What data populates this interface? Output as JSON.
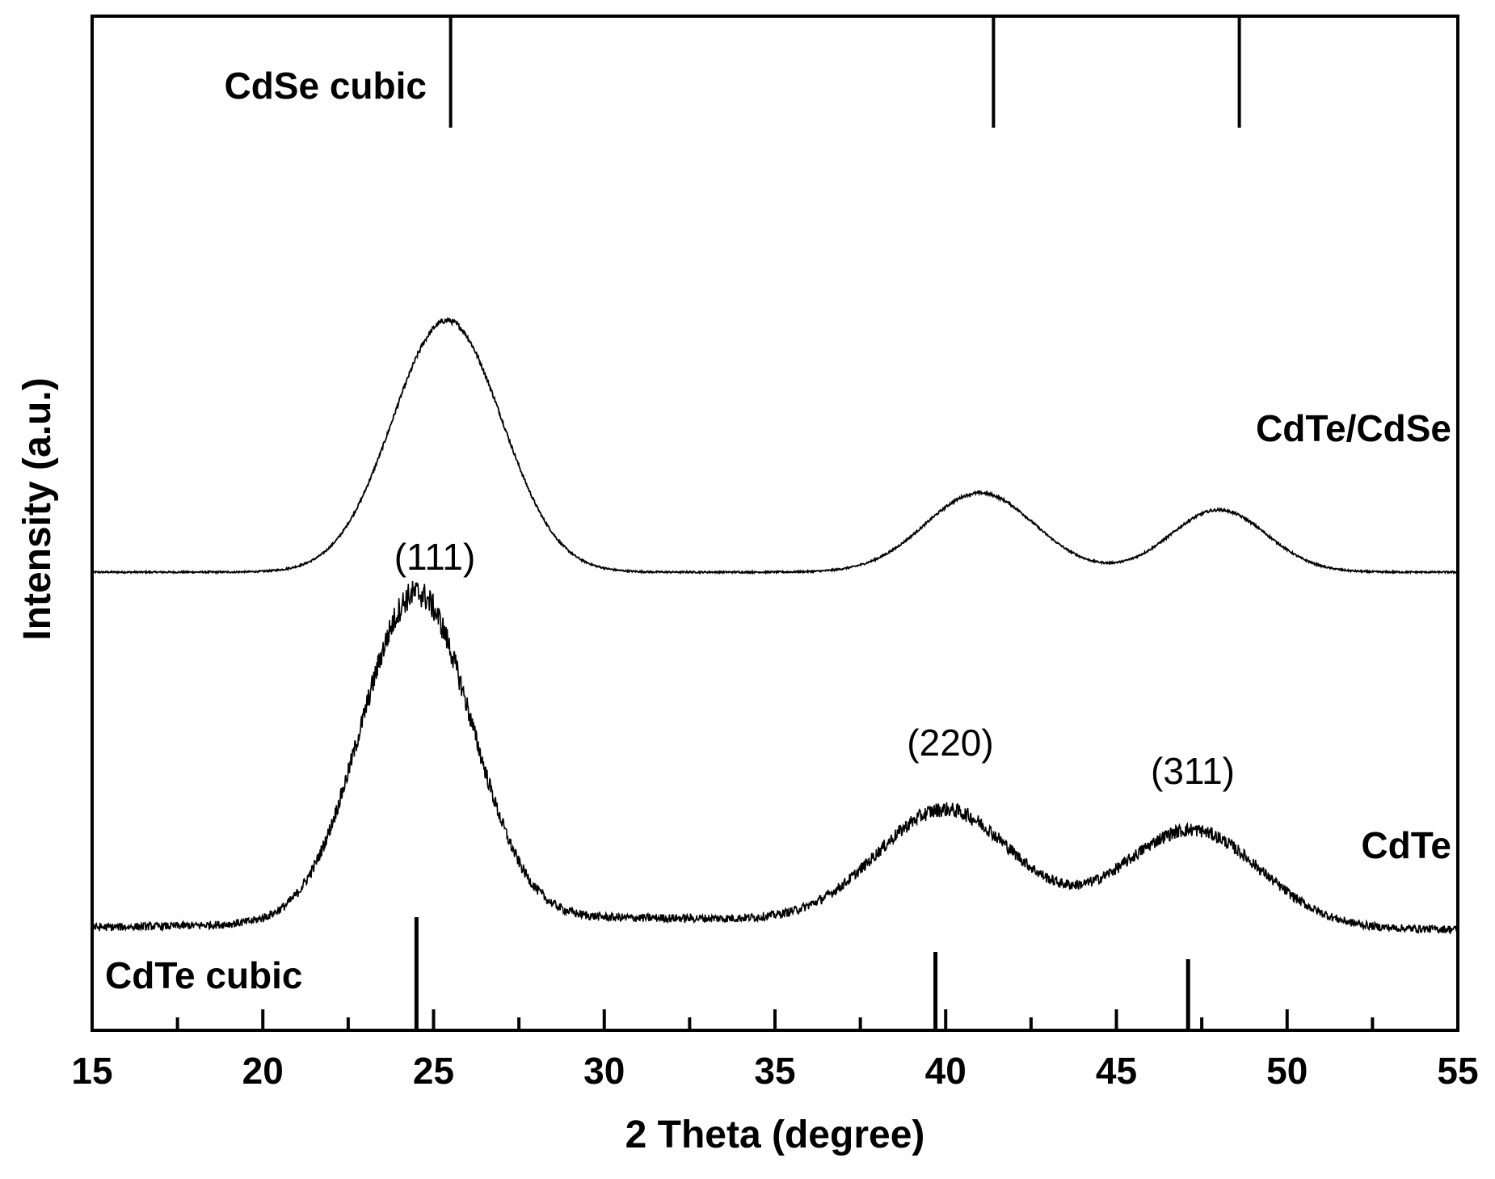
{
  "chart_data": {
    "type": "line",
    "title": "",
    "xlabel": "2 Theta (degree)",
    "ylabel": "Intensity (a.u.)",
    "xlim": [
      15,
      55
    ],
    "x_ticks": [
      15,
      20,
      25,
      30,
      35,
      40,
      45,
      50,
      55
    ],
    "grid": false,
    "series": [
      {
        "name": "CdTe/CdSe",
        "baseline": 1.0,
        "noise": 0.003,
        "peaks": [
          {
            "center": 25.4,
            "height": 0.89,
            "width": 1.6
          },
          {
            "center": 41.0,
            "height": 0.28,
            "width": 1.6
          },
          {
            "center": 48.0,
            "height": 0.22,
            "width": 1.4
          }
        ]
      },
      {
        "name": "CdTe",
        "baseline": 0.0,
        "noise": 0.012,
        "peaks": [
          {
            "center": 24.5,
            "height": 1.0,
            "width": 1.6
          },
          {
            "center": 40.0,
            "height": 0.35,
            "width": 2.0
          },
          {
            "center": 47.2,
            "height": 0.3,
            "width": 2.0
          }
        ]
      }
    ],
    "reference_patterns": [
      {
        "name": "CdSe cubic",
        "positions": [
          25.5,
          41.4,
          48.6
        ]
      },
      {
        "name": "CdTe cubic",
        "positions": [
          24.5,
          39.7,
          47.1
        ]
      }
    ],
    "annotations": [
      {
        "text": "(111)",
        "x": 24.5
      },
      {
        "text": "(220)",
        "x": 40.0
      },
      {
        "text": "(311)",
        "x": 47.2
      }
    ]
  }
}
